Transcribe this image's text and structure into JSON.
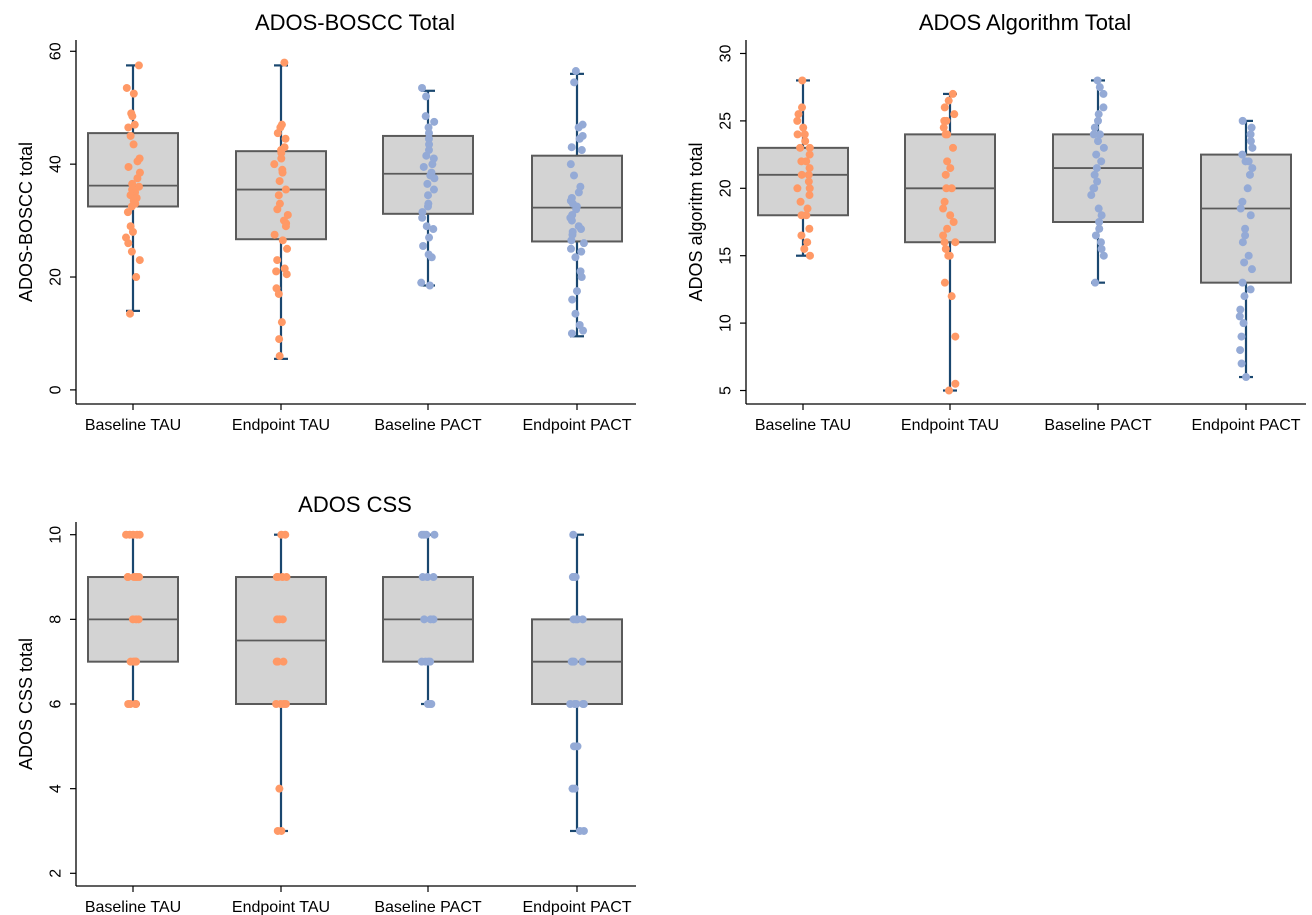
{
  "colors": {
    "tau_points": "#ff9966",
    "pact_points": "#94aad6",
    "box_fill": "#d3d3d3",
    "box_stroke": "#5a5a5a",
    "whisker": "#1a476f"
  },
  "chart_data": [
    {
      "type": "box",
      "title": "ADOS-BOSCC Total",
      "ylabel": "ADOS-BOSCC total",
      "xlabel": "",
      "ylim": [
        -2.5,
        62
      ],
      "yticks": [
        0,
        20,
        40,
        60
      ],
      "categories": [
        "Baseline TAU",
        "Endpoint TAU",
        "Baseline PACT",
        "Endpoint PACT"
      ],
      "groups": [
        "TAU",
        "TAU",
        "PACT",
        "PACT"
      ],
      "boxes": [
        {
          "min": 14,
          "q1": 32.5,
          "median": 36.2,
          "q3": 45.5,
          "max": 57.5
        },
        {
          "min": 5.5,
          "q1": 26.7,
          "median": 35.5,
          "q3": 42.3,
          "max": 57.5
        },
        {
          "min": 18.5,
          "q1": 31.2,
          "median": 38.3,
          "q3": 45,
          "max": 53
        },
        {
          "min": 9.5,
          "q1": 26.3,
          "median": 32.3,
          "q3": 41.5,
          "max": 56
        }
      ],
      "points": [
        [
          57.5,
          53.5,
          52.5,
          49,
          48.5,
          47,
          46.5,
          45,
          43.5,
          41,
          40.5,
          39.5,
          38.5,
          37.5,
          36.5,
          36,
          35.5,
          35,
          34.5,
          34,
          33.5,
          33,
          32.5,
          31.5,
          29,
          28,
          27,
          26,
          24.5,
          23,
          20,
          13.5
        ],
        [
          58,
          47,
          46.5,
          45.5,
          44.5,
          43,
          42.5,
          42,
          41,
          40,
          39,
          38.5,
          37,
          35.5,
          34.5,
          33,
          32,
          31,
          30,
          29.5,
          29,
          27.5,
          26.5,
          25,
          23,
          21.5,
          21,
          20.5,
          18,
          17,
          12,
          9,
          6
        ],
        [
          53.5,
          52,
          48.5,
          47.5,
          46.5,
          45.5,
          44.5,
          43.5,
          42.5,
          41.5,
          41,
          40,
          39.5,
          38.5,
          38,
          37.5,
          36.5,
          35.5,
          34.5,
          33,
          32.5,
          31.5,
          30.5,
          29,
          28.5,
          27,
          25.5,
          24,
          23.5,
          19,
          18.5
        ],
        [
          56.5,
          54.5,
          47,
          46.5,
          45,
          44.5,
          43,
          42.5,
          40,
          38,
          36,
          35,
          34,
          33.5,
          33,
          32.5,
          32,
          31,
          30.5,
          30,
          29,
          28.5,
          28,
          27.5,
          26.5,
          26,
          25,
          24.5,
          23.5,
          21,
          20,
          17.5,
          16,
          13.5,
          11.5,
          10.5,
          10
        ]
      ]
    },
    {
      "type": "box",
      "title": "ADOS Algorithm Total",
      "ylabel": "ADOS algoritm total",
      "xlabel": "",
      "ylim": [
        4,
        31
      ],
      "yticks": [
        5,
        10,
        15,
        20,
        25,
        30
      ],
      "categories": [
        "Baseline TAU",
        "Endpoint TAU",
        "Baseline PACT",
        "Endpoint PACT"
      ],
      "groups": [
        "TAU",
        "TAU",
        "PACT",
        "PACT"
      ],
      "boxes": [
        {
          "min": 15,
          "q1": 18,
          "median": 21,
          "q3": 23,
          "max": 28
        },
        {
          "min": 5,
          "q1": 16,
          "median": 20,
          "q3": 24,
          "max": 27
        },
        {
          "min": 13,
          "q1": 17.5,
          "median": 21.5,
          "q3": 24,
          "max": 28
        },
        {
          "min": 6,
          "q1": 13,
          "median": 18.5,
          "q3": 22.5,
          "max": 25
        }
      ],
      "points": [
        [
          28,
          26,
          25.5,
          25,
          24.5,
          24,
          24,
          23.5,
          23,
          23,
          22.5,
          22,
          22,
          21.5,
          21,
          21,
          20.5,
          20,
          20,
          19.5,
          19,
          18.5,
          18,
          18,
          17,
          16.5,
          16,
          15.5,
          15
        ],
        [
          27,
          26.5,
          26,
          25.5,
          25,
          25,
          24.5,
          24,
          24,
          23,
          22,
          21.5,
          21,
          20,
          20,
          19,
          18.5,
          18,
          17.5,
          17,
          16.5,
          16,
          16,
          15.5,
          15,
          15,
          13,
          12,
          9,
          5.5,
          5
        ],
        [
          28,
          27.5,
          27,
          26,
          25.5,
          25,
          24.5,
          24,
          24,
          23.5,
          23,
          22.5,
          22,
          21.5,
          21,
          20.5,
          20,
          20,
          19.5,
          18.5,
          18,
          17.5,
          17,
          16.5,
          16,
          15.5,
          15,
          13
        ],
        [
          25,
          24.5,
          24,
          23.5,
          23,
          22.5,
          22,
          22,
          21.5,
          21,
          20,
          19,
          18.5,
          18,
          17,
          16.5,
          16,
          15,
          14.5,
          14,
          13,
          12.5,
          12,
          11,
          10.5,
          10,
          9,
          8,
          7,
          6
        ]
      ]
    },
    {
      "type": "box",
      "title": "ADOS CSS",
      "ylabel": "ADOS CSS total",
      "xlabel": "",
      "ylim": [
        1.7,
        10.3
      ],
      "yticks": [
        2,
        4,
        6,
        8,
        10
      ],
      "categories": [
        "Baseline TAU",
        "Endpoint TAU",
        "Baseline PACT",
        "Endpoint PACT"
      ],
      "groups": [
        "TAU",
        "TAU",
        "PACT",
        "PACT"
      ],
      "boxes": [
        {
          "min": 6,
          "q1": 7,
          "median": 8,
          "q3": 9,
          "max": 10
        },
        {
          "min": 3,
          "q1": 6,
          "median": 7.5,
          "q3": 9,
          "max": 10
        },
        {
          "min": 6,
          "q1": 7,
          "median": 8,
          "q3": 9,
          "max": 10
        },
        {
          "min": 3,
          "q1": 6,
          "median": 7,
          "q3": 8,
          "max": 10
        }
      ],
      "points": [
        [
          10,
          10,
          10,
          10,
          10,
          9,
          9,
          9,
          9,
          9,
          9,
          8,
          8,
          8,
          7,
          7,
          7,
          7,
          7,
          6,
          6,
          6,
          6
        ],
        [
          10,
          10,
          9,
          9,
          9,
          9,
          8,
          8,
          8,
          7,
          7,
          7,
          6,
          6,
          6,
          6,
          4,
          3,
          3
        ],
        [
          10,
          10,
          10,
          10,
          9,
          9,
          9,
          8,
          8,
          8,
          7,
          7,
          7,
          7,
          6,
          6,
          6
        ],
        [
          10,
          9,
          9,
          9,
          8,
          8,
          8,
          8,
          7,
          7,
          7,
          7,
          6,
          6,
          6,
          6,
          6,
          5,
          5,
          4,
          4,
          3,
          3
        ]
      ]
    }
  ]
}
